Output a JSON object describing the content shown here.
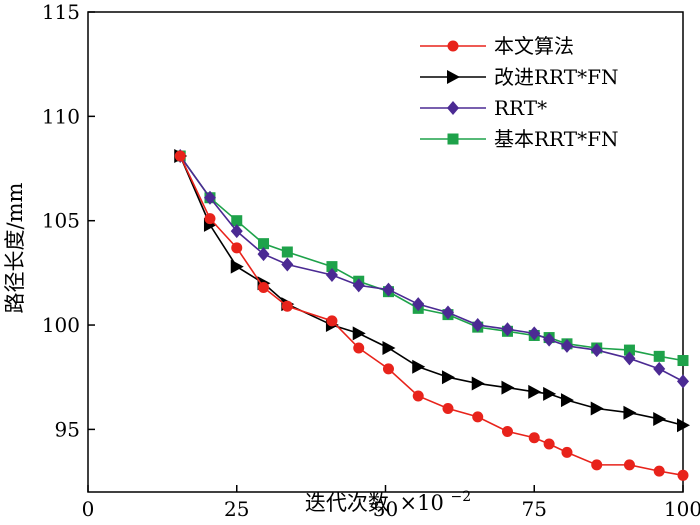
{
  "chart_data": {
    "type": "line",
    "title": "",
    "xlabel": "迭代次数",
    "xlabel_multiplier": "×10",
    "xlabel_exponent": "−2",
    "ylabel": "路径长度/mm",
    "xlim": [
      0,
      100
    ],
    "ylim": [
      92,
      115
    ],
    "x_ticks": [
      0,
      25,
      50,
      75,
      100
    ],
    "y_ticks": [
      95,
      100,
      105,
      110,
      115
    ],
    "grid": false,
    "legend_position": "top-right",
    "series": [
      {
        "name": "本文算法",
        "color": "#e8231b",
        "marker": "circle",
        "x": [
          15.5,
          20.5,
          25,
          29.5,
          33.5,
          41,
          45.5,
          50.5,
          55.5,
          60.5,
          65.5,
          70.5,
          75,
          77.5,
          80.5,
          85.5,
          91,
          96,
          100
        ],
        "y": [
          108.1,
          105.1,
          103.7,
          101.8,
          100.9,
          100.2,
          98.9,
          97.9,
          96.6,
          96.0,
          95.6,
          94.9,
          94.6,
          94.3,
          93.9,
          93.3,
          93.3,
          93.0,
          92.8
        ]
      },
      {
        "name": "改进RRT*FN",
        "color": "#000000",
        "marker": "triangle-right",
        "x": [
          15.5,
          20.5,
          25,
          29.5,
          33.5,
          41,
          45.5,
          50.5,
          55.5,
          60.5,
          65.5,
          70.5,
          75,
          77.5,
          80.5,
          85.5,
          91,
          96,
          100
        ],
        "y": [
          108.1,
          104.8,
          102.8,
          102.0,
          101.0,
          100.0,
          99.6,
          98.9,
          98.0,
          97.5,
          97.2,
          97.0,
          96.8,
          96.7,
          96.4,
          96.0,
          95.8,
          95.5,
          95.2
        ]
      },
      {
        "name": "RRT*",
        "color": "#4b2a93",
        "marker": "diamond",
        "x": [
          15.5,
          20.5,
          25,
          29.5,
          33.5,
          41,
          45.5,
          50.5,
          55.5,
          60.5,
          65.5,
          70.5,
          75,
          77.5,
          80.5,
          85.5,
          91,
          96,
          100
        ],
        "y": [
          108.1,
          106.1,
          104.5,
          103.4,
          102.9,
          102.4,
          101.9,
          101.7,
          101.0,
          100.6,
          100.0,
          99.8,
          99.6,
          99.3,
          99.0,
          98.8,
          98.4,
          97.9,
          97.3
        ]
      },
      {
        "name": "基本RRT*FN",
        "color": "#1ea24a",
        "marker": "square",
        "x": [
          15.5,
          20.5,
          25,
          29.5,
          33.5,
          41,
          45.5,
          50.5,
          55.5,
          60.5,
          65.5,
          70.5,
          75,
          77.5,
          80.5,
          85.5,
          91,
          96,
          100
        ],
        "y": [
          108.1,
          106.1,
          105.0,
          103.9,
          103.5,
          102.8,
          102.1,
          101.6,
          100.8,
          100.5,
          99.9,
          99.7,
          99.5,
          99.4,
          99.1,
          98.9,
          98.8,
          98.5,
          98.3
        ]
      }
    ]
  }
}
